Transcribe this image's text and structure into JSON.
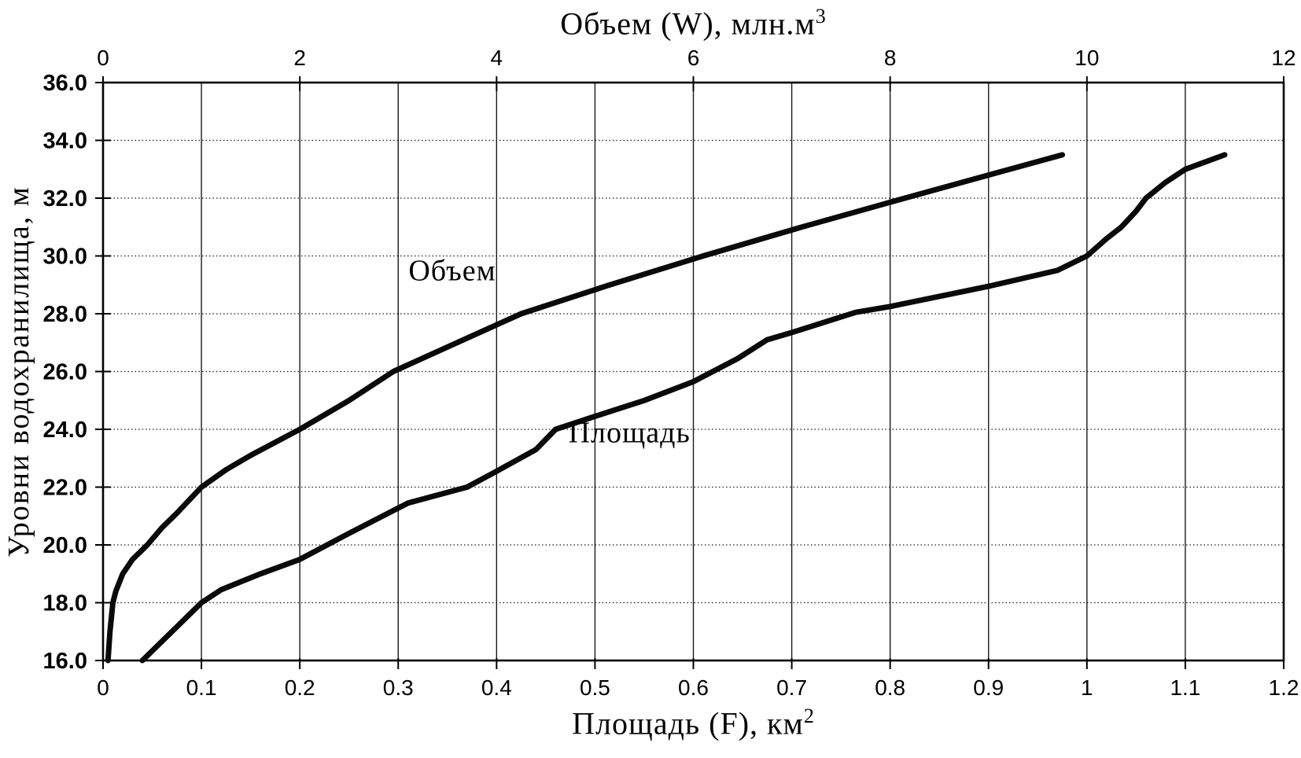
{
  "chart_data": {
    "type": "line",
    "background": "#ffffff",
    "line_color": "#0a0a0a",
    "top_axis": {
      "label_text": "Объем (W),  млн.м",
      "label_sup": "3",
      "min": 0,
      "max": 12,
      "ticks": [
        {
          "label": "0",
          "value": 0
        },
        {
          "label": "2",
          "value": 2
        },
        {
          "label": "4",
          "value": 4
        },
        {
          "label": "6",
          "value": 6
        },
        {
          "label": "8",
          "value": 8
        },
        {
          "label": "10",
          "value": 10
        },
        {
          "label": "12",
          "value": 12
        }
      ]
    },
    "bottom_axis": {
      "label_text": "Площадь (F), км",
      "label_sup": "2",
      "min": 0,
      "max": 1.2,
      "ticks": [
        {
          "label": "0",
          "value": 0
        },
        {
          "label": "0.1",
          "value": 0.1
        },
        {
          "label": "0.2",
          "value": 0.2
        },
        {
          "label": "0.3",
          "value": 0.3
        },
        {
          "label": "0.4",
          "value": 0.4
        },
        {
          "label": "0.5",
          "value": 0.5
        },
        {
          "label": "0.6",
          "value": 0.6
        },
        {
          "label": "0.7",
          "value": 0.7
        },
        {
          "label": "0.8",
          "value": 0.8
        },
        {
          "label": "0.9",
          "value": 0.9
        },
        {
          "label": "1",
          "value": 1
        },
        {
          "label": "1.1",
          "value": 1.1
        },
        {
          "label": "1.2",
          "value": 1.2
        }
      ]
    },
    "left_axis": {
      "label": "Уровни  водохранилища,  м",
      "min": 16,
      "max": 36,
      "ticks": [
        {
          "label": "36.0",
          "value": 36
        },
        {
          "label": "34.0",
          "value": 34
        },
        {
          "label": "32.0",
          "value": 32
        },
        {
          "label": "30.0",
          "value": 30
        },
        {
          "label": "28.0",
          "value": 28
        },
        {
          "label": "26.0",
          "value": 26
        },
        {
          "label": "24.0",
          "value": 24
        },
        {
          "label": "22.0",
          "value": 22
        },
        {
          "label": "20.0",
          "value": 20
        },
        {
          "label": "18.0",
          "value": 18
        },
        {
          "label": "16.0",
          "value": 16
        }
      ]
    },
    "grid": {
      "vertical_step_bottom_units": 0.1,
      "horizontal_step_m": 2,
      "vertical_style": "solid",
      "horizontal_style": "dotted"
    },
    "series": [
      {
        "id": "volume",
        "name": "Объем",
        "axis": "top",
        "units": "млн.м3",
        "label_pos": {
          "x": 3.55,
          "y": 29.15
        },
        "points": [
          [
            0.05,
            16.0
          ],
          [
            0.07,
            17.0
          ],
          [
            0.1,
            18.0
          ],
          [
            0.13,
            18.4
          ],
          [
            0.2,
            19.0
          ],
          [
            0.3,
            19.5
          ],
          [
            0.45,
            20.0
          ],
          [
            0.6,
            20.6
          ],
          [
            0.75,
            21.1
          ],
          [
            1.0,
            22.0
          ],
          [
            1.25,
            22.6
          ],
          [
            1.5,
            23.1
          ],
          [
            2.0,
            24.0
          ],
          [
            2.5,
            25.0
          ],
          [
            2.95,
            26.0
          ],
          [
            3.6,
            27.0
          ],
          [
            4.25,
            28.0
          ],
          [
            5.15,
            29.0
          ],
          [
            6.1,
            30.0
          ],
          [
            7.1,
            31.0
          ],
          [
            8.15,
            32.0
          ],
          [
            9.0,
            32.8
          ],
          [
            9.75,
            33.5
          ]
        ]
      },
      {
        "id": "area",
        "name": "Площадь",
        "axis": "bottom",
        "units": "км2",
        "label_pos": {
          "x": 0.535,
          "y": 23.55
        },
        "points": [
          [
            0.04,
            16.0
          ],
          [
            0.07,
            17.0
          ],
          [
            0.1,
            18.0
          ],
          [
            0.12,
            18.45
          ],
          [
            0.16,
            19.0
          ],
          [
            0.2,
            19.5
          ],
          [
            0.25,
            20.4
          ],
          [
            0.31,
            21.45
          ],
          [
            0.37,
            22.0
          ],
          [
            0.4,
            22.55
          ],
          [
            0.44,
            23.3
          ],
          [
            0.46,
            24.0
          ],
          [
            0.5,
            24.45
          ],
          [
            0.55,
            25.0
          ],
          [
            0.6,
            25.65
          ],
          [
            0.645,
            26.45
          ],
          [
            0.675,
            27.1
          ],
          [
            0.7,
            27.35
          ],
          [
            0.765,
            28.05
          ],
          [
            0.8,
            28.25
          ],
          [
            0.9,
            28.95
          ],
          [
            0.97,
            29.5
          ],
          [
            1.0,
            30.0
          ],
          [
            1.02,
            30.6
          ],
          [
            1.035,
            31.0
          ],
          [
            1.05,
            31.55
          ],
          [
            1.06,
            32.0
          ],
          [
            1.08,
            32.55
          ],
          [
            1.1,
            33.0
          ],
          [
            1.14,
            33.5
          ]
        ]
      }
    ]
  }
}
